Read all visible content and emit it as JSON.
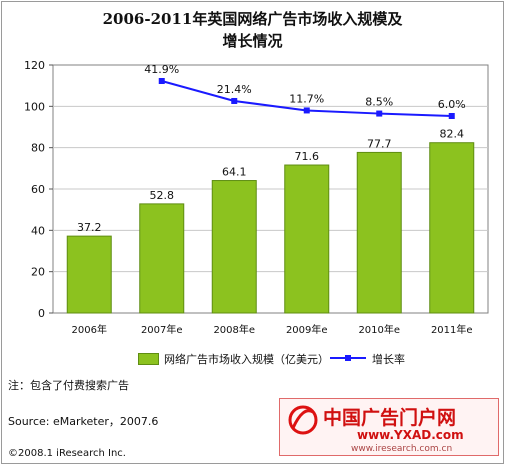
{
  "chart_data": {
    "type": "bar",
    "title_line1": "2006-2011年英国网络广告市场收入规模及",
    "title_line2": "增长情况",
    "categories": [
      "2006年",
      "2007年e",
      "2008年e",
      "2009年e",
      "2010年e",
      "2011年e"
    ],
    "series": [
      {
        "name": "网络广告市场收入规模（亿美元）",
        "type": "bar",
        "values": [
          37.2,
          52.8,
          64.1,
          71.6,
          77.7,
          82.4
        ],
        "labels": [
          "37.2",
          "52.8",
          "64.1",
          "71.6",
          "77.7",
          "82.4"
        ]
      },
      {
        "name": "增长率",
        "type": "line",
        "values": [
          null,
          41.9,
          21.4,
          11.7,
          8.5,
          6.0
        ],
        "labels": [
          "",
          "41.9%",
          "21.4%",
          "11.7%",
          "8.5%",
          "6.0%"
        ]
      }
    ],
    "ylim": [
      0,
      120
    ],
    "yticks": [
      "0",
      "20",
      "40",
      "60",
      "80",
      "100",
      "120"
    ],
    "grid": true,
    "legend_position": "bottom",
    "colors": {
      "bar": "#8cc21f",
      "bar_edge": "#5f8d12",
      "line": "#1a1aff",
      "grid": "#c8c8c8"
    }
  },
  "footer": {
    "note": "注：包含了付费搜索广告",
    "source": "Source: eMarketer，2007.6",
    "copyright": "©2008.1 iResearch Inc."
  },
  "watermark": {
    "site_name": "中国广告门户网",
    "url": "www.YXAD.com",
    "sub_url": "www.iresearch.com.cn"
  }
}
